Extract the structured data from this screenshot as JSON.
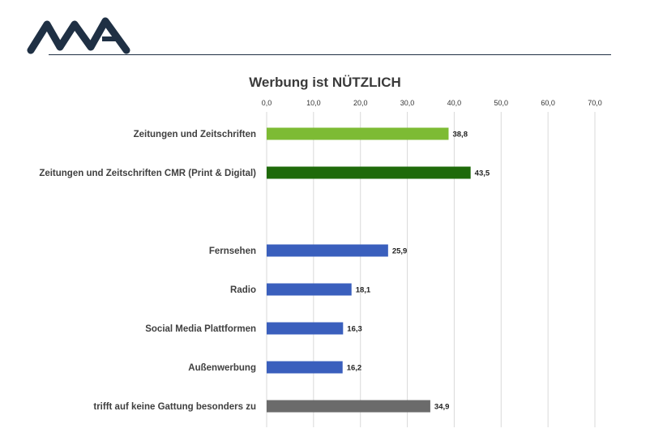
{
  "logo": {
    "text": "MA",
    "color": "#1f3044"
  },
  "chart_data": {
    "type": "bar",
    "orientation": "horizontal",
    "title": "Werbung ist NÜTZLICH",
    "xlim": [
      0,
      70
    ],
    "xticks": [
      0,
      10,
      20,
      30,
      40,
      50,
      60,
      70
    ],
    "xtick_labels": [
      "0,0",
      "10,0",
      "20,0",
      "30,0",
      "40,0",
      "50,0",
      "60,0",
      "70,0"
    ],
    "grid": true,
    "axis_position": "top",
    "categories": [
      "Zeitungen und Zeitschriften",
      "Zeitungen und Zeitschriften CMR (Print & Digital)",
      "",
      "Fernsehen",
      "Radio",
      "Social Media Plattformen",
      "Außenwerbung",
      "trifft auf keine Gattung besonders zu"
    ],
    "values": [
      38.8,
      43.5,
      null,
      25.9,
      18.1,
      16.3,
      16.2,
      34.9
    ],
    "value_labels": [
      "38,8",
      "43,5",
      "",
      "25,9",
      "18,1",
      "16,3",
      "16,2",
      "34,9"
    ],
    "colors": [
      "#7dbb34",
      "#1e6a0a",
      "",
      "#3a5fbd",
      "#3a5fbd",
      "#3a5fbd",
      "#3a5fbd",
      "#6b6b6b"
    ]
  }
}
